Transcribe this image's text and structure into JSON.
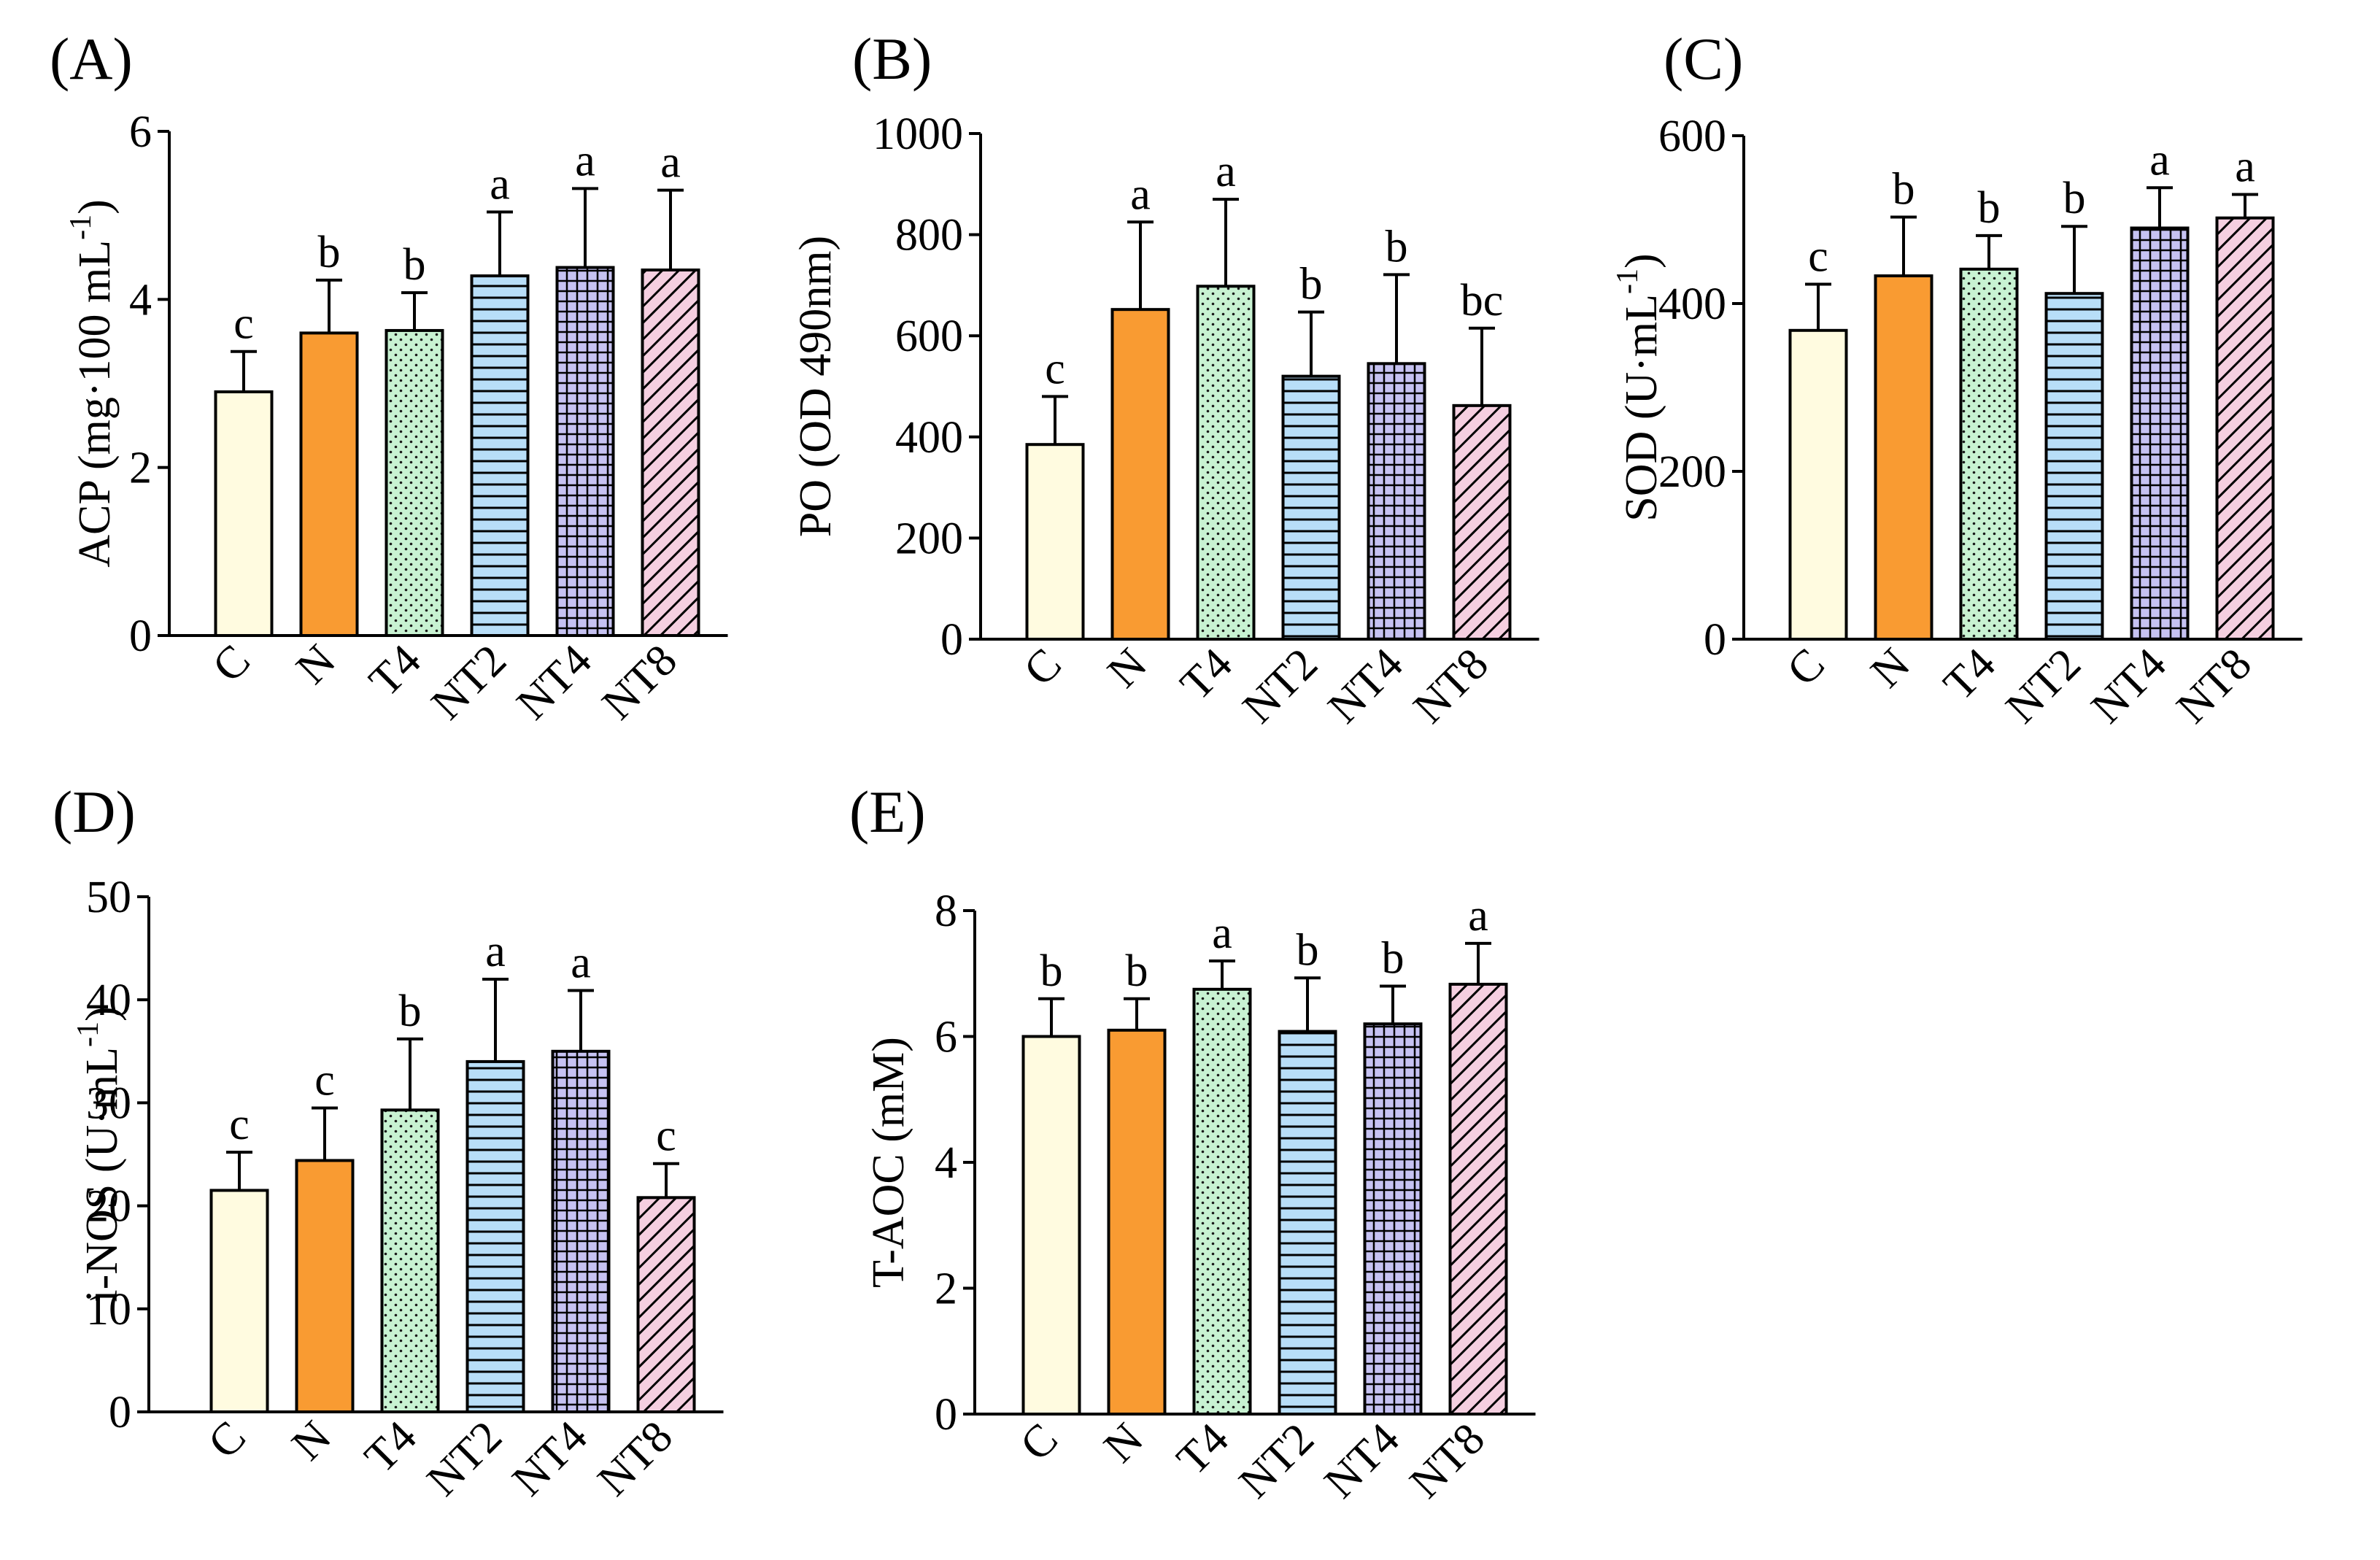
{
  "colors": {
    "C": "#fffbe0",
    "N": "#f99b32",
    "T4": "#c8f2d2",
    "T4_dots": "#1a1a1a",
    "NT2": "#b8def8",
    "NT4": "#c6c2f2",
    "NT8": "#f5cfe0",
    "stroke": "#000000"
  },
  "chart_data": [
    {
      "type": "bar",
      "panel": "(A)",
      "ylabel": "ACP (mg·100 mL",
      "ylabel_sup": "-1",
      "ylabel_close": ")",
      "categories": [
        "C",
        "N",
        "T4",
        "NT2",
        "NT4",
        "NT8"
      ],
      "values": [
        2.9,
        3.6,
        3.63,
        4.28,
        4.38,
        4.35
      ],
      "errors": [
        0.48,
        0.63,
        0.45,
        0.76,
        0.94,
        0.95
      ],
      "letters": [
        "c",
        "b",
        "b",
        "a",
        "a",
        "a"
      ],
      "ylim": [
        0,
        6
      ],
      "yticks": [
        0,
        2,
        4,
        6
      ],
      "tick_labels": [
        "0",
        "2",
        "4",
        "6"
      ]
    },
    {
      "type": "bar",
      "panel": "(B)",
      "ylabel": "PO (OD 490nm)",
      "ylabel_sup": "",
      "ylabel_close": "",
      "categories": [
        "C",
        "N",
        "T4",
        "NT2",
        "NT4",
        "NT8"
      ],
      "values": [
        385,
        652,
        698,
        520,
        545,
        462
      ],
      "errors": [
        95,
        173,
        172,
        127,
        176,
        153
      ],
      "letters": [
        "c",
        "a",
        "a",
        "b",
        "b",
        "bc"
      ],
      "ylim": [
        0,
        1000
      ],
      "yticks": [
        0,
        200,
        400,
        600,
        800,
        1000
      ],
      "tick_labels": [
        "0",
        "200",
        "400",
        "600",
        "800",
        "1000"
      ]
    },
    {
      "type": "bar",
      "panel": "(C)",
      "ylabel": "SOD (U·mL",
      "ylabel_sup": "-1",
      "ylabel_close": ")",
      "categories": [
        "C",
        "N",
        "T4",
        "NT2",
        "NT4",
        "NT8"
      ],
      "values": [
        368,
        433,
        441,
        412,
        490,
        502
      ],
      "errors": [
        55,
        70,
        40,
        80,
        48,
        28
      ],
      "letters": [
        "c",
        "b",
        "b",
        "b",
        "a",
        "a"
      ],
      "ylim": [
        0,
        600
      ],
      "yticks": [
        0,
        200,
        400,
        600
      ],
      "tick_labels": [
        "0",
        "200",
        "400",
        "600"
      ]
    },
    {
      "type": "bar",
      "panel": "(D)",
      "ylabel": "i-NOS (U·mL",
      "ylabel_sup": "-1",
      "ylabel_close": ")",
      "categories": [
        "C",
        "N",
        "T4",
        "NT2",
        "NT4",
        "NT8"
      ],
      "values": [
        21.5,
        24.4,
        29.3,
        34.0,
        35.0,
        20.8
      ],
      "errors": [
        3.7,
        5.1,
        6.9,
        8.0,
        5.9,
        3.3
      ],
      "letters": [
        "c",
        "c",
        "b",
        "a",
        "a",
        "c"
      ],
      "ylim": [
        0,
        50
      ],
      "yticks": [
        0,
        10,
        20,
        30,
        40,
        50
      ],
      "tick_labels": [
        "0",
        "10",
        "20",
        "30",
        "40",
        "50"
      ]
    },
    {
      "type": "bar",
      "panel": "(E)",
      "ylabel": "T-AOC (mM)",
      "ylabel_sup": "",
      "ylabel_close": "",
      "categories": [
        "C",
        "N",
        "T4",
        "NT2",
        "NT4",
        "NT8"
      ],
      "values": [
        6.0,
        6.1,
        6.75,
        6.08,
        6.2,
        6.83
      ],
      "errors": [
        0.6,
        0.5,
        0.45,
        0.85,
        0.6,
        0.65
      ],
      "letters": [
        "b",
        "b",
        "a",
        "b",
        "b",
        "a"
      ],
      "ylim": [
        0,
        8
      ],
      "yticks": [
        0,
        2,
        4,
        6,
        8
      ],
      "tick_labels": [
        "0",
        "2",
        "4",
        "6",
        "8"
      ]
    }
  ]
}
